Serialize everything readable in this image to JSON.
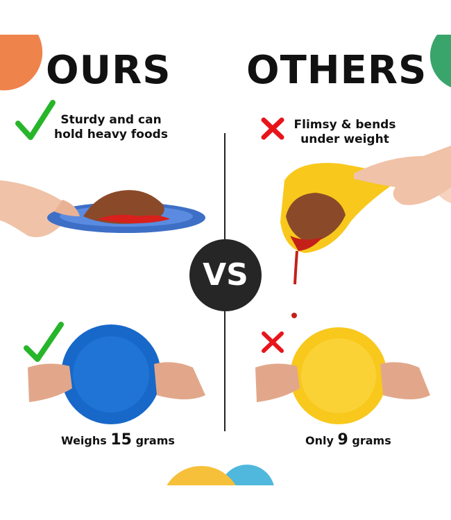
{
  "colors": {
    "accent_orange": "#ef834c",
    "accent_green": "#3aa56a",
    "accent_yellow": "#f6c03a",
    "accent_blue": "#4fb8dc",
    "ours_plate": "#1768c9",
    "others_plate": "#f8c81c",
    "check": "#27b52a",
    "cross": "#e8141b",
    "vs_bg": "#262626"
  },
  "ours": {
    "heading": "OURS",
    "feature": "Sturdy and can hold heavy foods",
    "feature_line1": "Sturdy and can",
    "feature_line2": "hold heavy foods",
    "weight_prefix": "Weighs",
    "weight_value": "15",
    "weight_suffix": "grams",
    "icon": "check-icon"
  },
  "others": {
    "heading": "OTHERS",
    "feature_line1": "Flimsy & bends",
    "feature_line2": "under weight",
    "weight_prefix": "Only",
    "weight_value": "9",
    "weight_suffix": "grams",
    "icon": "cross-icon"
  },
  "vs_label": "VS"
}
